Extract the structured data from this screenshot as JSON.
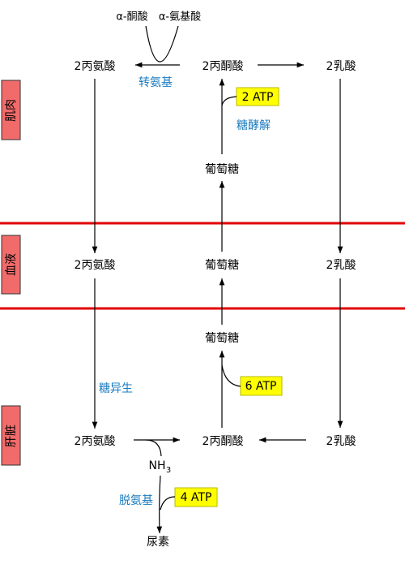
{
  "labels": {
    "alpha_keto_acid": "α-酮酸",
    "alpha_amino_acid": "α-氨基酸",
    "transamination": "转氨基",
    "glycolysis": "糖酵解",
    "gluconeogenesis": "糖异生",
    "deamination": "脱氨基",
    "urea": "尿素",
    "nh": "NH",
    "nh_sub": "3"
  },
  "regions": {
    "muscle": "肌肉",
    "blood": "血液",
    "liver": "肝脏"
  },
  "muscle": {
    "alanine": "2丙氨酸",
    "pyruvate": "2丙酮酸",
    "lactate": "2乳酸",
    "glucose": "葡萄糖",
    "atp": "2 ATP"
  },
  "blood": {
    "alanine": "2丙氨酸",
    "glucose": "葡萄糖",
    "lactate": "2乳酸"
  },
  "liver": {
    "glucose": "葡萄糖",
    "atp_glucose": "6 ATP",
    "alanine": "2丙氨酸",
    "pyruvate": "2丙酮酸",
    "lactate": "2乳酸",
    "atp_urea": "4 ATP"
  }
}
